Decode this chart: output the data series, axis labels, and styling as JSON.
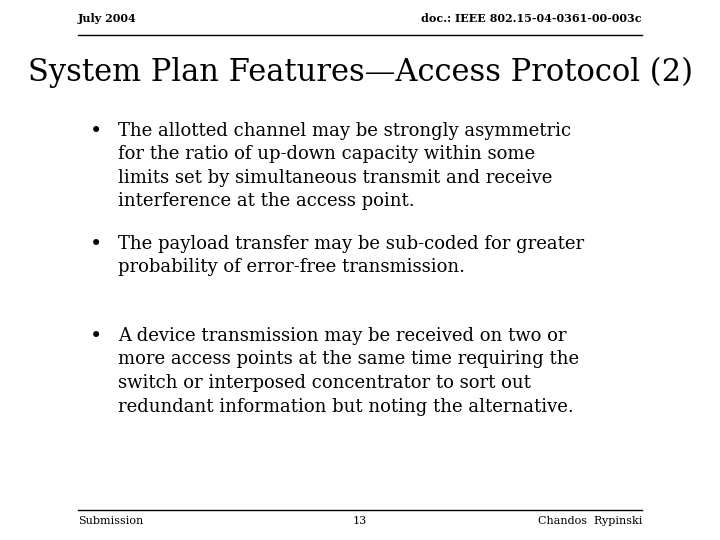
{
  "background_color": "#ffffff",
  "top_left_text": "July 2004",
  "top_right_text": "doc.: IEEE 802.15-04-0361-00-003c",
  "title": "System Plan Features—Access Protocol (2)",
  "bullets": [
    "The allotted channel may be strongly asymmetric\nfor the ratio of up-down capacity within some\nlimits set by simultaneous transmit and receive\ninterference at the access point.",
    "The payload transfer may be sub-coded for greater\nprobability of error-free transmission.",
    "A device transmission may be received on two or\nmore access points at the same time requiring the\nswitch or interposed concentrator to sort out\nredundant information but noting the alternative."
  ],
  "footer_left": "Submission",
  "footer_center": "13",
  "footer_right": "Chandos  Rypinski",
  "header_fontsize": 8,
  "title_fontsize": 22,
  "bullet_fontsize": 13,
  "footer_fontsize": 8,
  "text_color": "#000000",
  "font_family": "serif"
}
